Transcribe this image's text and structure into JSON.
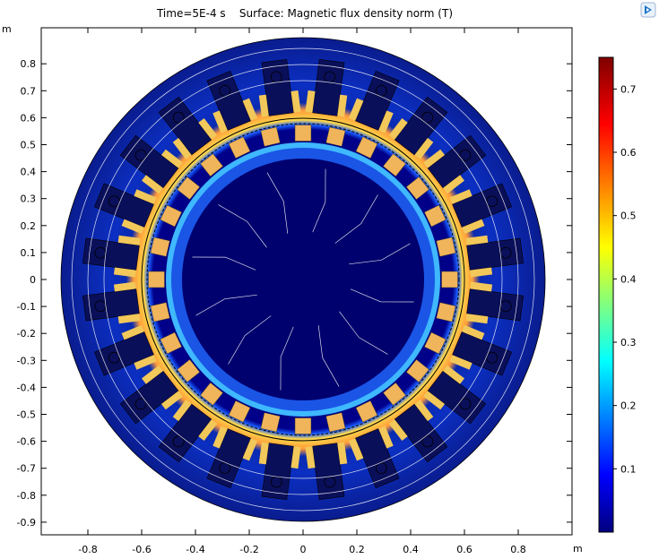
{
  "title": {
    "time_text": "Time=5E-4 s",
    "surface_text": "Surface: Magnetic flux density norm (T)"
  },
  "units": {
    "x": "m",
    "y": "m"
  },
  "icons": {
    "corner": "comsol-logo-icon"
  },
  "chart_data": {
    "type": "heatmap",
    "quantity": "Magnetic flux density norm",
    "unit": "T",
    "x_ticks": [
      -0.8,
      -0.6,
      -0.4,
      -0.2,
      0,
      0.2,
      0.4,
      0.6,
      0.8
    ],
    "x_tick_labels": [
      "-0.8",
      "-0.6",
      "-0.4",
      "-0.2",
      "0",
      "0.2",
      "0.4",
      "0.6",
      "0.8"
    ],
    "y_ticks": [
      0.8,
      0.7,
      0.6,
      0.5,
      0.4,
      0.3,
      0.2,
      0.1,
      0,
      -0.1,
      -0.2,
      -0.3,
      -0.4,
      -0.5,
      -0.6,
      -0.7,
      -0.8,
      -0.9
    ],
    "y_tick_labels": [
      "0.8",
      "0.7",
      "0.6",
      "0.5",
      "0.4",
      "0.3",
      "0.2",
      "0.1",
      "0",
      "-0.1",
      "-0.2",
      "-0.3",
      "-0.4",
      "-0.5",
      "-0.6",
      "-0.7",
      "-0.8",
      "-0.9"
    ],
    "xlim": [
      -0.98,
      1.02
    ],
    "ylim": [
      -0.96,
      0.94
    ],
    "colorbar": {
      "range": [
        0,
        0.75
      ],
      "ticks": [
        0.7,
        0.6,
        0.5,
        0.4,
        0.3,
        0.2,
        0.1
      ],
      "tick_labels": [
        "0.7",
        "0.6",
        "0.5",
        "0.4",
        "0.3",
        "0.2",
        "0.1"
      ],
      "colormap": "rainbow"
    },
    "geometry": {
      "stator_outer_radius": 0.9,
      "stator_bore_radius": 0.6,
      "rotor_outer_radius": 0.58,
      "rotor_inner_radius": 0.51,
      "stator_slots": 24,
      "rotor_magnets": 28
    }
  },
  "colors": {
    "background_field": "#0a1c8f",
    "rotor_core": "#00006a",
    "contour": "#ffffff"
  }
}
